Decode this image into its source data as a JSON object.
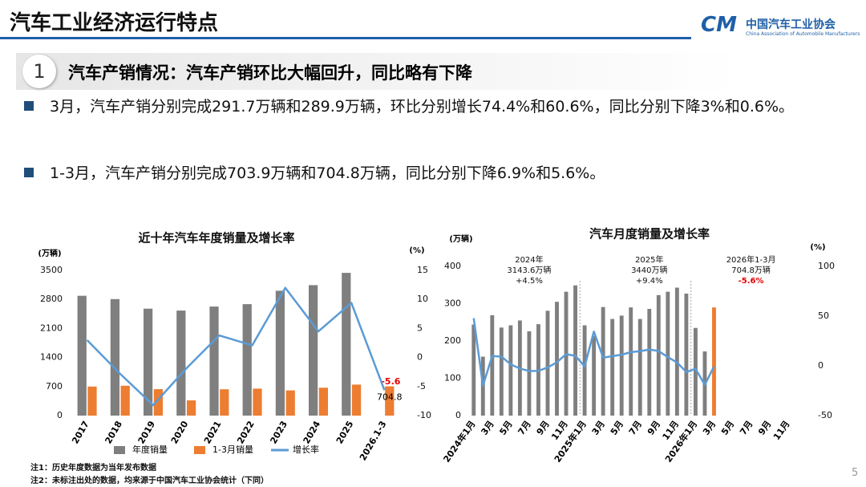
{
  "header": {
    "title": "汽车工业经济运行特点",
    "logo_name": "中国汽车工业协会",
    "logo_english": "China Association of Automobile Manufacturers",
    "logo_mark": "CM"
  },
  "section": {
    "number": "1",
    "heading": "汽车产销情况：汽车产销环比大幅回升，同比略有下降"
  },
  "bullets": [
    "3月，汽车产销分别完成291.7万辆和289.9万辆，环比分别增长74.4%和60.6%，同比分别下降3%和0.6%。",
    "1-3月，汽车产销分别完成703.9万辆和704.8万辆，同比分别下降6.9%和5.6%。"
  ],
  "notes": [
    "注1：历史年度数据为当年发布数据",
    "注2：未标注出处的数据，均来源于中国汽车工业协会统计（下同）"
  ],
  "page_number": "5",
  "chart_data": [
    {
      "type": "bar",
      "title": "近十年汽车年度销量及增长率",
      "y_label": "(万辆)",
      "y2_label": "(%)",
      "categories": [
        "2017",
        "2018",
        "2019",
        "2020",
        "2021",
        "2022",
        "2023",
        "2024",
        "2025",
        "2026.1-3"
      ],
      "ylim": [
        0,
        3500
      ],
      "yticks": [
        0,
        700,
        1400,
        2100,
        2800,
        3500
      ],
      "y2lim": [
        -10,
        15
      ],
      "y2ticks": [
        -10,
        -5,
        0,
        5,
        10,
        15
      ],
      "legend": "bottom",
      "series": [
        {
          "name": "年度销量",
          "color": "#7f7f7f",
          "values": [
            2888,
            2808,
            2577,
            2531,
            2628,
            2686,
            3009,
            3144,
            3440,
            null
          ]
        },
        {
          "name": "1-3月销量",
          "color": "#ed7d31",
          "values": [
            700,
            720,
            637,
            367,
            634,
            650,
            607,
            672,
            747,
            704.8
          ],
          "value_labels": [
            null,
            null,
            null,
            null,
            null,
            null,
            null,
            null,
            null,
            "704.8"
          ],
          "label_color": "#000000"
        },
        {
          "name": "增长率",
          "type": "line",
          "axis": "y2",
          "color": "#5b9bd5",
          "values": [
            3.0,
            -2.8,
            -8.2,
            -1.9,
            3.8,
            2.1,
            12.0,
            4.5,
            9.4,
            -5.6
          ],
          "value_labels": [
            null,
            null,
            null,
            null,
            null,
            null,
            null,
            null,
            null,
            "-5.6"
          ],
          "label_color": "#e60000"
        }
      ]
    },
    {
      "type": "bar",
      "title": "汽车月度销量及增长率",
      "y_label": "(万辆)",
      "y2_label": "(%)",
      "categories": [
        "2024年1月",
        null,
        "3月",
        null,
        "5月",
        null,
        "7月",
        null,
        "9月",
        null,
        "11月",
        null,
        "2025年1月",
        null,
        "3月",
        null,
        "5月",
        null,
        "7月",
        null,
        "9月",
        null,
        "11月",
        null,
        "2026年1月",
        null,
        "3月",
        null,
        "5月",
        null,
        "7月",
        null,
        "9月",
        null,
        "11月",
        null
      ],
      "ylim": [
        0,
        400
      ],
      "yticks": [
        0,
        100,
        200,
        300,
        400
      ],
      "y2lim": [
        -50,
        100
      ],
      "y2ticks": [
        -50,
        0,
        50,
        100
      ],
      "series": [
        {
          "type": "bar",
          "color": "#7f7f7f",
          "point_colors": [
            null,
            null,
            null,
            null,
            null,
            null,
            null,
            null,
            null,
            null,
            null,
            null,
            null,
            null,
            null,
            null,
            null,
            null,
            null,
            null,
            null,
            null,
            null,
            null,
            null,
            null,
            "#ed7d31",
            null,
            null,
            null,
            null,
            null,
            null,
            null,
            null,
            null
          ],
          "values": [
            244,
            158,
            269,
            236,
            242,
            255,
            226,
            245,
            281,
            305,
            332,
            349,
            242,
            213,
            291,
            259,
            268,
            290,
            259,
            286,
            323,
            332,
            343,
            327,
            235,
            172,
            289.9,
            null,
            null,
            null,
            null,
            null,
            null,
            null,
            null,
            null
          ]
        },
        {
          "type": "line",
          "axis": "y2",
          "color": "#5b9bd5",
          "values": [
            47.9,
            -19.9,
            9.9,
            9.3,
            1.5,
            -2.7,
            -5.2,
            -5.0,
            -1.7,
            3.7,
            11.7,
            10.1,
            -0.6,
            34.4,
            8.2,
            9.8,
            11.2,
            13.8,
            14.7,
            16.4,
            14.9,
            8.8,
            3.4,
            -6.2,
            -3.0,
            -19.0,
            -0.6,
            null,
            null,
            null,
            null,
            null,
            null,
            null,
            null,
            null
          ]
        }
      ],
      "annotations": [
        {
          "lines": [
            "2024年",
            "3143.6万辆",
            "+4.5%"
          ]
        },
        {
          "lines": [
            "2025年",
            "3440万辆",
            "+9.4%"
          ]
        },
        {
          "lines": [
            "2026年1-3月",
            "704.8万辆",
            "-5.6%"
          ],
          "last_line_color": "#e60000"
        }
      ]
    }
  ]
}
